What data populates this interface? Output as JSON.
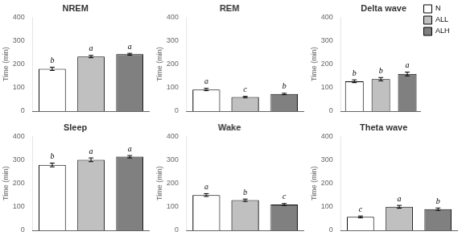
{
  "chart_data": [
    {
      "type": "bar",
      "title": "NREM",
      "ylabel": "Time (min)",
      "categories": [
        "N",
        "ALL",
        "ALH"
      ],
      "values": [
        180,
        232,
        242
      ],
      "errors": [
        7,
        5,
        4
      ],
      "letters": [
        "b",
        "a",
        "a"
      ],
      "colors": [
        "#ffffff",
        "#c0c0c0",
        "#808080"
      ],
      "ylim": [
        0,
        400
      ],
      "yticks": [
        0,
        100,
        200,
        300,
        400
      ],
      "grid": false,
      "tick_labels": "y"
    },
    {
      "type": "bar",
      "title": "REM",
      "ylabel": "Time (min)",
      "categories": [
        "N",
        "ALL",
        "ALH"
      ],
      "values": [
        92,
        60,
        73
      ],
      "errors": [
        5,
        3,
        3
      ],
      "letters": [
        "a",
        "c",
        "b"
      ],
      "colors": [
        "#ffffff",
        "#c0c0c0",
        "#808080"
      ],
      "ylim": [
        0,
        400
      ],
      "yticks": [
        0,
        100,
        200,
        300,
        400
      ],
      "grid": false,
      "tick_labels": "y"
    },
    {
      "type": "bar",
      "title": "Delta wave",
      "ylabel": "Time (min)",
      "categories": [
        "N",
        "ALL",
        "ALH"
      ],
      "values": [
        127,
        136,
        158
      ],
      "errors": [
        6,
        7,
        8
      ],
      "letters": [
        "b",
        "b",
        "a"
      ],
      "colors": [
        "#ffffff",
        "#c0c0c0",
        "#808080"
      ],
      "ylim": [
        0,
        400
      ],
      "yticks": [
        0,
        100,
        200,
        300,
        400
      ],
      "grid": false,
      "tick_labels": "y",
      "legend": "upper right"
    },
    {
      "type": "bar",
      "title": "Sleep",
      "ylabel": "Time (min)",
      "categories": [
        "N",
        "ALL",
        "ALH"
      ],
      "values": [
        278,
        300,
        313
      ],
      "errors": [
        8,
        8,
        5
      ],
      "letters": [
        "b",
        "a",
        "a"
      ],
      "colors": [
        "#ffffff",
        "#c0c0c0",
        "#808080"
      ],
      "ylim": [
        0,
        400
      ],
      "yticks": [
        0,
        100,
        200,
        300,
        400
      ],
      "grid": false,
      "tick_labels": "y"
    },
    {
      "type": "bar",
      "title": "Wake",
      "ylabel": "Time (min)",
      "categories": [
        "N",
        "ALL",
        "ALH"
      ],
      "values": [
        150,
        128,
        110
      ],
      "errors": [
        6,
        5,
        4
      ],
      "letters": [
        "a",
        "b",
        "c"
      ],
      "colors": [
        "#ffffff",
        "#c0c0c0",
        "#808080"
      ],
      "ylim": [
        0,
        400
      ],
      "yticks": [
        0,
        100,
        200,
        300,
        400
      ],
      "grid": false,
      "tick_labels": "y"
    },
    {
      "type": "bar",
      "title": "Theta wave",
      "ylabel": "Time (min)",
      "categories": [
        "N",
        "ALL",
        "ALH"
      ],
      "values": [
        57,
        100,
        90
      ],
      "errors": [
        4,
        6,
        5
      ],
      "letters": [
        "c",
        "a",
        "b"
      ],
      "colors": [
        "#ffffff",
        "#c0c0c0",
        "#808080"
      ],
      "ylim": [
        0,
        400
      ],
      "yticks": [
        0,
        100,
        200,
        300,
        400
      ],
      "grid": false,
      "tick_labels": "y"
    }
  ]
}
